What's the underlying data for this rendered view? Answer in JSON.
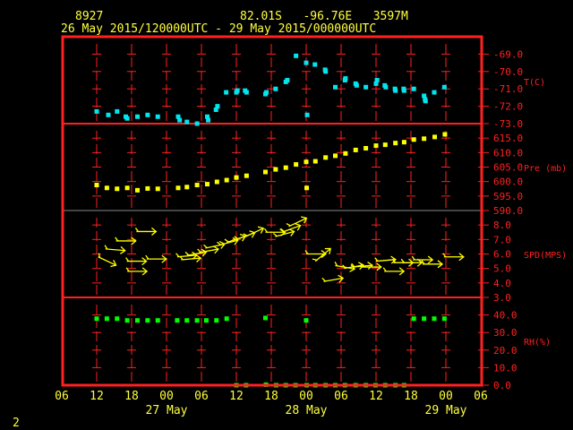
{
  "header": {
    "station": "8927",
    "location": "82.01S   -96.76E   3597M",
    "period": "26 May 2015/120000UTC - 29 May 2015/000000UTC"
  },
  "footer": {
    "page": "2"
  },
  "colors": {
    "frame": "#ff2020",
    "text": "#ffff3c",
    "temperature": "#00e5ee",
    "pressure": "#ffff00",
    "wind": "#ffff00",
    "rh": "#00ff00"
  },
  "chart_data": {
    "type": "scatter",
    "xlim": [
      "2015-05-26T06:00",
      "2015-05-29T06:00"
    ],
    "x_tick_labels": [
      "06",
      "12",
      "18",
      "00",
      "06",
      "12",
      "18",
      "00",
      "06",
      "12",
      "18",
      "00",
      "06"
    ],
    "date_labels": [
      {
        "time": "2015-05-27T00:00",
        "label": "27 May"
      },
      {
        "time": "2015-05-28T00:00",
        "label": "28 May"
      },
      {
        "time": "2015-05-29T00:00",
        "label": "29 May"
      }
    ],
    "panels": [
      {
        "key": "t",
        "ylabel": "T(C)",
        "ylim": [
          -73,
          -68
        ],
        "ticks": [
          "-69.0",
          "-70.0",
          "-71.0",
          "-72.0",
          "-73.0"
        ],
        "tick_values": [
          -69,
          -70,
          -71,
          -72,
          -73
        ],
        "points": [
          [
            "2015-05-26T12:00",
            -72.3
          ],
          [
            "2015-05-26T14:00",
            -72.5
          ],
          [
            "2015-05-26T15:30",
            -72.3
          ],
          [
            "2015-05-26T17:00",
            -72.6
          ],
          [
            "2015-05-26T17:15",
            -72.7
          ],
          [
            "2015-05-26T19:00",
            -72.6
          ],
          [
            "2015-05-26T20:45",
            -72.5
          ],
          [
            "2015-05-26T22:30",
            -72.6
          ],
          [
            "2015-05-27T02:00",
            -72.6
          ],
          [
            "2015-05-27T02:15",
            -72.8
          ],
          [
            "2015-05-27T03:30",
            -72.9
          ],
          [
            "2015-05-27T05:15",
            -73.0
          ],
          [
            "2015-05-27T07:00",
            -72.6
          ],
          [
            "2015-05-27T07:10",
            -72.8
          ],
          [
            "2015-05-27T08:30",
            -72.2
          ],
          [
            "2015-05-27T08:45",
            -72.0
          ],
          [
            "2015-05-27T10:15",
            -71.2
          ],
          [
            "2015-05-27T12:00",
            -71.2
          ],
          [
            "2015-05-27T12:10",
            -71.1
          ],
          [
            "2015-05-27T13:30",
            -71.1
          ],
          [
            "2015-05-27T13:45",
            -71.2
          ],
          [
            "2015-05-27T17:00",
            -71.3
          ],
          [
            "2015-05-27T17:10",
            -71.2
          ],
          [
            "2015-05-27T18:45",
            -71.0
          ],
          [
            "2015-05-27T20:30",
            -70.6
          ],
          [
            "2015-05-27T20:45",
            -70.5
          ],
          [
            "2015-05-27T22:15",
            -69.1
          ],
          [
            "2015-05-28T00:00",
            -69.5
          ],
          [
            "2015-05-28T00:10",
            -72.5
          ],
          [
            "2015-05-28T01:30",
            -69.6
          ],
          [
            "2015-05-28T03:15",
            -69.9
          ],
          [
            "2015-05-28T03:20",
            -70.0
          ],
          [
            "2015-05-28T05:00",
            -70.9
          ],
          [
            "2015-05-28T06:40",
            -70.5
          ],
          [
            "2015-05-28T06:45",
            -70.4
          ],
          [
            "2015-05-28T08:30",
            -70.7
          ],
          [
            "2015-05-28T08:40",
            -70.8
          ],
          [
            "2015-05-28T10:15",
            -70.9
          ],
          [
            "2015-05-28T12:00",
            -70.7
          ],
          [
            "2015-05-28T12:10",
            -70.5
          ],
          [
            "2015-05-28T13:30",
            -70.8
          ],
          [
            "2015-05-28T13:40",
            -70.9
          ],
          [
            "2015-05-28T15:15",
            -71.0
          ],
          [
            "2015-05-28T15:20",
            -71.1
          ],
          [
            "2015-05-28T16:45",
            -71.0
          ],
          [
            "2015-05-28T16:50",
            -71.1
          ],
          [
            "2015-05-28T18:30",
            -71.0
          ],
          [
            "2015-05-28T20:15",
            -71.4
          ],
          [
            "2015-05-28T20:25",
            -71.6
          ],
          [
            "2015-05-28T20:30",
            -71.7
          ],
          [
            "2015-05-28T22:00",
            -71.2
          ],
          [
            "2015-05-28T23:45",
            -70.9
          ]
        ]
      },
      {
        "key": "p",
        "ylabel": "Pre (mb)",
        "ylim": [
          590,
          620
        ],
        "ticks": [
          "615.0",
          "610.0",
          "605.0",
          "600.0",
          "595.0",
          "590.0"
        ],
        "tick_values": [
          615,
          610,
          605,
          600,
          595,
          590
        ],
        "points": [
          [
            "2015-05-26T12:00",
            598.8
          ],
          [
            "2015-05-26T13:45",
            597.8
          ],
          [
            "2015-05-26T15:30",
            597.5
          ],
          [
            "2015-05-26T17:15",
            597.8
          ],
          [
            "2015-05-26T19:00",
            597.0
          ],
          [
            "2015-05-26T20:45",
            597.6
          ],
          [
            "2015-05-26T22:30",
            597.5
          ],
          [
            "2015-05-27T02:00",
            597.8
          ],
          [
            "2015-05-27T03:30",
            598.1
          ],
          [
            "2015-05-27T05:15",
            598.8
          ],
          [
            "2015-05-27T07:00",
            599.1
          ],
          [
            "2015-05-27T08:40",
            599.9
          ],
          [
            "2015-05-27T10:20",
            600.5
          ],
          [
            "2015-05-27T12:00",
            601.4
          ],
          [
            "2015-05-27T13:45",
            602.0
          ],
          [
            "2015-05-27T17:00",
            603.3
          ],
          [
            "2015-05-27T18:45",
            604.2
          ],
          [
            "2015-05-27T20:30",
            604.8
          ],
          [
            "2015-05-27T22:15",
            605.9
          ],
          [
            "2015-05-28T00:00",
            606.8
          ],
          [
            "2015-05-28T00:05",
            597.8
          ],
          [
            "2015-05-28T01:35",
            607.0
          ],
          [
            "2015-05-28T03:20",
            608.3
          ],
          [
            "2015-05-28T05:00",
            608.9
          ],
          [
            "2015-05-28T06:45",
            609.7
          ],
          [
            "2015-05-28T08:30",
            610.9
          ],
          [
            "2015-05-28T10:15",
            611.5
          ],
          [
            "2015-05-28T12:00",
            612.4
          ],
          [
            "2015-05-28T13:35",
            612.7
          ],
          [
            "2015-05-28T15:20",
            613.3
          ],
          [
            "2015-05-28T16:50",
            613.6
          ],
          [
            "2015-05-28T18:30",
            614.5
          ],
          [
            "2015-05-28T20:15",
            614.8
          ],
          [
            "2015-05-28T22:05",
            615.4
          ],
          [
            "2015-05-28T23:50",
            616.3
          ]
        ]
      },
      {
        "key": "spd",
        "ylabel": "SPD(MPS)",
        "ylim": [
          3,
          9
        ],
        "ticks": [
          "8.0",
          "7.0",
          "6.0",
          "5.0",
          "4.0",
          "3.0"
        ],
        "tick_values": [
          8,
          7,
          6,
          5,
          4,
          3
        ],
        "arrows_note_angle_unit": "deg",
        "points": [
          [
            "2015-05-26T12:15",
            5.8,
            -25
          ],
          [
            "2015-05-26T13:30",
            6.35,
            -5
          ],
          [
            "2015-05-26T15:20",
            6.9,
            0
          ],
          [
            "2015-05-26T17:10",
            5.5,
            0
          ],
          [
            "2015-05-26T17:15",
            4.8,
            0
          ],
          [
            "2015-05-26T18:50",
            7.55,
            0
          ],
          [
            "2015-05-26T20:35",
            5.65,
            0
          ],
          [
            "2015-05-27T01:50",
            5.8,
            5
          ],
          [
            "2015-05-27T02:30",
            5.6,
            5
          ],
          [
            "2015-05-27T03:30",
            5.9,
            10
          ],
          [
            "2015-05-27T05:35",
            6.1,
            10
          ],
          [
            "2015-05-27T06:40",
            6.4,
            12
          ],
          [
            "2015-05-27T09:00",
            6.6,
            15
          ],
          [
            "2015-05-27T10:20",
            6.8,
            18
          ],
          [
            "2015-05-27T12:00",
            7.0,
            20
          ],
          [
            "2015-05-27T13:35",
            7.2,
            25
          ],
          [
            "2015-05-27T17:00",
            7.5,
            0
          ],
          [
            "2015-05-27T18:40",
            7.2,
            15
          ],
          [
            "2015-05-27T19:50",
            7.5,
            20
          ],
          [
            "2015-05-27T21:00",
            7.9,
            25
          ],
          [
            "2015-05-28T00:00",
            6.0,
            0
          ],
          [
            "2015-05-28T01:35",
            5.5,
            40
          ],
          [
            "2015-05-28T03:00",
            4.1,
            10
          ],
          [
            "2015-05-28T05:00",
            5.2,
            -10
          ],
          [
            "2015-05-28T06:30",
            5.0,
            10
          ],
          [
            "2015-05-28T08:00",
            5.1,
            5
          ],
          [
            "2015-05-28T09:30",
            5.1,
            0
          ],
          [
            "2015-05-28T12:00",
            5.5,
            5
          ],
          [
            "2015-05-28T13:25",
            4.8,
            0
          ],
          [
            "2015-05-28T15:00",
            5.4,
            0
          ],
          [
            "2015-05-28T16:30",
            5.4,
            0
          ],
          [
            "2015-05-28T18:20",
            5.6,
            0
          ],
          [
            "2015-05-28T20:00",
            5.3,
            0
          ],
          [
            "2015-05-28T23:40",
            5.8,
            0
          ]
        ]
      },
      {
        "key": "rh",
        "ylabel": "RH(%)",
        "ylim": [
          0,
          50
        ],
        "ticks": [
          "40.0",
          "30.0",
          "20.0",
          "10.0",
          "0.0"
        ],
        "tick_values": [
          40,
          30,
          20,
          10,
          0
        ],
        "points": [
          [
            "2015-05-26T12:00",
            37.9
          ],
          [
            "2015-05-26T13:45",
            37.9
          ],
          [
            "2015-05-26T15:30",
            37.9
          ],
          [
            "2015-05-26T17:15",
            36.9
          ],
          [
            "2015-05-26T19:00",
            36.9
          ],
          [
            "2015-05-26T20:45",
            36.9
          ],
          [
            "2015-05-26T22:30",
            36.9
          ],
          [
            "2015-05-27T01:50",
            36.9
          ],
          [
            "2015-05-27T03:30",
            36.9
          ],
          [
            "2015-05-27T05:15",
            36.9
          ],
          [
            "2015-05-27T06:50",
            36.9
          ],
          [
            "2015-05-27T08:35",
            36.9
          ],
          [
            "2015-05-27T10:20",
            37.9
          ],
          [
            "2015-05-27T12:00",
            0
          ],
          [
            "2015-05-27T13:40",
            0
          ],
          [
            "2015-05-27T17:00",
            38.3
          ],
          [
            "2015-05-27T17:05",
            0.3
          ],
          [
            "2015-05-27T18:50",
            0
          ],
          [
            "2015-05-27T20:30",
            0
          ],
          [
            "2015-05-27T22:10",
            0
          ],
          [
            "2015-05-28T00:00",
            36.9
          ],
          [
            "2015-05-28T00:05",
            0
          ],
          [
            "2015-05-28T01:35",
            0
          ],
          [
            "2015-05-28T03:20",
            0
          ],
          [
            "2015-05-28T05:00",
            0
          ],
          [
            "2015-05-28T06:40",
            0
          ],
          [
            "2015-05-28T08:30",
            0
          ],
          [
            "2015-05-28T10:15",
            0
          ],
          [
            "2015-05-28T11:55",
            0
          ],
          [
            "2015-05-28T13:35",
            0
          ],
          [
            "2015-05-28T15:20",
            0
          ],
          [
            "2015-05-28T16:50",
            0
          ],
          [
            "2015-05-28T18:30",
            37.9
          ],
          [
            "2015-05-28T20:15",
            37.9
          ],
          [
            "2015-05-28T22:00",
            37.9
          ],
          [
            "2015-05-28T23:45",
            37.9
          ]
        ]
      }
    ]
  }
}
